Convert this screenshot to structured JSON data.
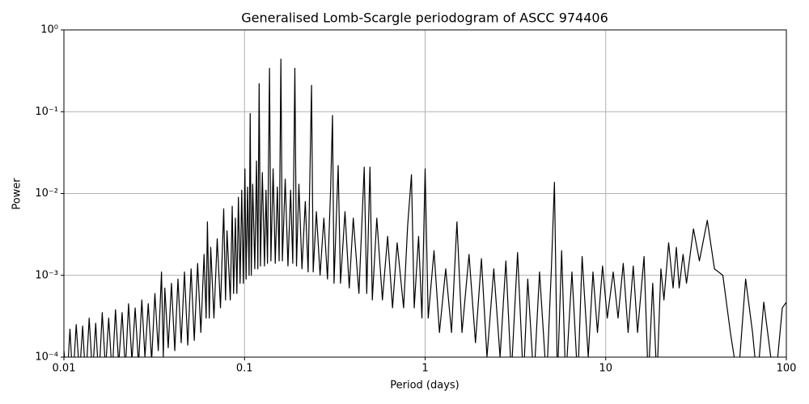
{
  "chart_data": {
    "type": "line",
    "title": "Generalised Lomb-Scargle periodogram of ASCC 974406",
    "x_label": "Period (days)",
    "y_label": "Power",
    "xscale": "log",
    "yscale": "log",
    "grid": true,
    "color": "#000000",
    "xlim": [
      0.01,
      100
    ],
    "ylim": [
      0.0001,
      1
    ],
    "xticks": [
      0.01,
      0.1,
      1,
      10,
      100
    ],
    "yticks": [
      {
        "value": 0.0001,
        "label": "10⁻⁴"
      },
      {
        "value": 0.001,
        "label": "10⁻³"
      },
      {
        "value": 0.01,
        "label": "10⁻²"
      },
      {
        "value": 0.1,
        "label": "10⁻¹"
      },
      {
        "value": 1,
        "label": "10⁰"
      }
    ],
    "x": [
      0.01,
      0.0104,
      0.0108,
      0.0112,
      0.0117,
      0.0122,
      0.0127,
      0.0132,
      0.0138,
      0.0144,
      0.015,
      0.0156,
      0.0163,
      0.017,
      0.0177,
      0.0185,
      0.0193,
      0.0201,
      0.021,
      0.0219,
      0.0228,
      0.0238,
      0.0248,
      0.0259,
      0.027,
      0.0281,
      0.0293,
      0.0306,
      0.0319,
      0.0333,
      0.0347,
      0.0355,
      0.0362,
      0.0378,
      0.0394,
      0.0411,
      0.0428,
      0.0446,
      0.0465,
      0.0485,
      0.0506,
      0.0527,
      0.055,
      0.0573,
      0.0597,
      0.0613,
      0.0623,
      0.0638,
      0.065,
      0.0677,
      0.0706,
      0.0736,
      0.0767,
      0.0785,
      0.08,
      0.0834,
      0.0855,
      0.087,
      0.089,
      0.0907,
      0.0925,
      0.0945,
      0.0965,
      0.0985,
      0.1005,
      0.102,
      0.104,
      0.106,
      0.1075,
      0.109,
      0.111,
      0.114,
      0.1165,
      0.1185,
      0.1205,
      0.1225,
      0.1255,
      0.129,
      0.1315,
      0.134,
      0.1375,
      0.14,
      0.144,
      0.148,
      0.152,
      0.1555,
      0.159,
      0.162,
      0.168,
      0.174,
      0.18,
      0.185,
      0.19,
      0.194,
      0.2,
      0.208,
      0.217,
      0.225,
      0.235,
      0.24,
      0.25,
      0.262,
      0.275,
      0.288,
      0.3,
      0.307,
      0.313,
      0.33,
      0.34,
      0.36,
      0.38,
      0.4,
      0.43,
      0.46,
      0.475,
      0.495,
      0.51,
      0.54,
      0.58,
      0.62,
      0.66,
      0.7,
      0.76,
      0.8,
      0.84,
      0.87,
      0.92,
      0.96,
      1,
      1.04,
      1.12,
      1.2,
      1.3,
      1.4,
      1.5,
      1.6,
      1.75,
      1.9,
      2.05,
      2.2,
      2.4,
      2.6,
      2.8,
      3,
      3.25,
      3.5,
      3.7,
      4,
      4.3,
      4.7,
      5,
      5.2,
      5.4,
      5.7,
      6,
      6.5,
      7,
      7.4,
      8,
      8.5,
      9,
      9.6,
      10.2,
      11,
      11.7,
      12.5,
      13.3,
      14.2,
      15,
      16.3,
      17.2,
      18.2,
      19.2,
      20.2,
      21,
      22.3,
      23.6,
      24.6,
      25.5,
      26.8,
      28,
      30.6,
      33,
      36.5,
      40,
      44.5,
      49,
      54,
      59.5,
      65,
      69,
      75,
      82,
      87,
      95,
      100
    ],
    "values": [
      0.00012,
      5e-05,
      0.00022,
      5e-05,
      0.00025,
      6e-05,
      0.00024,
      5e-05,
      0.0003,
      6e-05,
      0.00026,
      5e-05,
      0.00035,
      7e-05,
      0.0003,
      6e-05,
      0.00038,
      8e-05,
      0.00035,
      7e-05,
      0.00045,
      9e-05,
      0.0004,
      8e-05,
      0.0005,
      0.0001,
      0.00045,
      9e-05,
      0.0006,
      0.00012,
      0.0011,
      0.0001,
      0.0007,
      0.00013,
      0.0008,
      0.00012,
      0.0009,
      0.00015,
      0.0011,
      0.00014,
      0.0012,
      0.00016,
      0.0014,
      0.0002,
      0.0018,
      0.0003,
      0.0045,
      0.0003,
      0.0022,
      0.0003,
      0.0028,
      0.0004,
      0.0065,
      0.0005,
      0.0035,
      0.0005,
      0.007,
      0.0006,
      0.005,
      0.0006,
      0.009,
      0.0008,
      0.011,
      0.0008,
      0.02,
      0.0009,
      0.012,
      0.001,
      0.095,
      0.001,
      0.013,
      0.0012,
      0.025,
      0.0012,
      0.22,
      0.0013,
      0.018,
      0.0013,
      0.011,
      0.0014,
      0.34,
      0.0015,
      0.02,
      0.0014,
      0.012,
      0.0015,
      0.44,
      0.0015,
      0.015,
      0.0013,
      0.011,
      0.0014,
      0.34,
      0.0013,
      0.013,
      0.0012,
      0.008,
      0.0011,
      0.21,
      0.0011,
      0.006,
      0.001,
      0.005,
      0.0009,
      0.012,
      0.09,
      0.0008,
      0.022,
      0.0008,
      0.006,
      0.0007,
      0.005,
      0.0006,
      0.021,
      0.0006,
      0.021,
      0.0005,
      0.005,
      0.0005,
      0.003,
      0.0004,
      0.0025,
      0.0004,
      0.004,
      0.017,
      0.0004,
      0.003,
      0.0003,
      0.02,
      0.0003,
      0.002,
      0.0002,
      0.0012,
      0.0002,
      0.0045,
      0.0002,
      0.0018,
      0.00015,
      0.0016,
      0.0001,
      0.0012,
      0.0001,
      0.0015,
      6e-05,
      0.0019,
      5e-05,
      0.0009,
      5e-05,
      0.0011,
      5e-05,
      0.0012,
      0.0137,
      5e-05,
      0.002,
      5e-05,
      0.0011,
      5e-05,
      0.0017,
      0.0001,
      0.0011,
      0.0002,
      0.0013,
      0.0003,
      0.0011,
      0.0003,
      0.0014,
      0.0002,
      0.0013,
      0.0002,
      0.0017,
      5e-05,
      0.0008,
      5e-05,
      0.0012,
      0.0005,
      0.0025,
      0.0007,
      0.0022,
      0.0007,
      0.0018,
      0.0008,
      0.0037,
      0.0015,
      0.0047,
      0.0012,
      0.001,
      0.0002,
      5e-05,
      0.0009,
      0.0002,
      5e-05,
      0.00047,
      0.0001,
      5e-05,
      0.0004,
      0.00047
    ]
  }
}
